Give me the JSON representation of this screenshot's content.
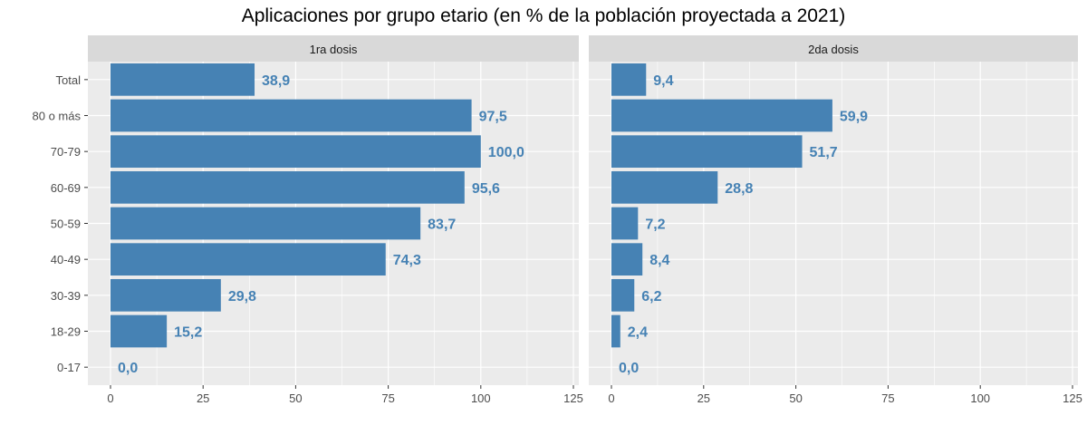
{
  "title": "Aplicaciones por grupo etario (en % de la población proyectada a 2021)",
  "colors": {
    "bar": "#4682B4",
    "label": "#4682B4",
    "panel_bg": "#EBEBEB",
    "strip_bg": "#D9D9D9",
    "grid": "#FFFFFF",
    "tick_text": "#4D4D4D"
  },
  "chart_data": {
    "type": "bar",
    "orientation": "horizontal",
    "title": "Aplicaciones por grupo etario (en % de la población proyectada a 2021)",
    "categories": [
      "Total",
      "80 o más",
      "70-79",
      "60-69",
      "50-59",
      "40-49",
      "30-39",
      "18-29",
      "0-17"
    ],
    "xlim": [
      0,
      125
    ],
    "xticks": [
      0,
      25,
      50,
      75,
      100,
      125
    ],
    "xlabel": "",
    "ylabel": "",
    "grid": true,
    "series": [
      {
        "name": "1ra dosis",
        "values": [
          38.9,
          97.5,
          100.0,
          95.6,
          83.7,
          74.3,
          29.8,
          15.2,
          0.0
        ],
        "labels": [
          "38,9",
          "97,5",
          "100,0",
          "95,6",
          "83,7",
          "74,3",
          "29,8",
          "15,2",
          "0,0"
        ]
      },
      {
        "name": "2da dosis",
        "values": [
          9.4,
          59.9,
          51.7,
          28.8,
          7.2,
          8.4,
          6.2,
          2.4,
          0.0
        ],
        "labels": [
          "9,4",
          "59,9",
          "51,7",
          "28,8",
          "7,2",
          "8,4",
          "6,2",
          "2,4",
          "0,0"
        ]
      }
    ]
  }
}
